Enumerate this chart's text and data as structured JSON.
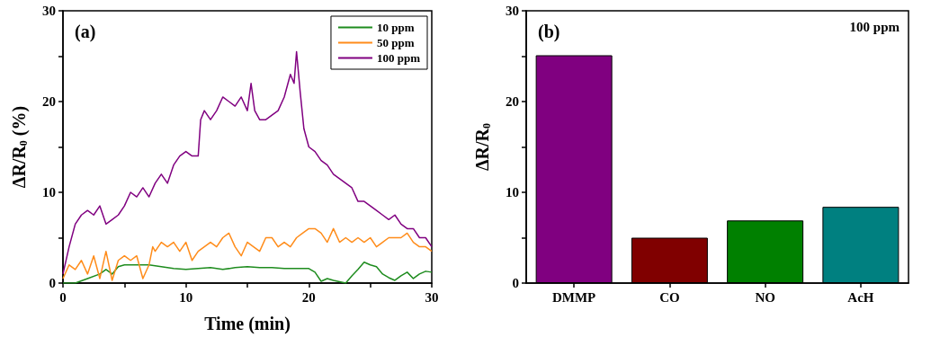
{
  "chart_data": [
    {
      "type": "line",
      "title": "(a)",
      "xlabel": "Time (min)",
      "ylabel": "ΔR/R$_{0}$ (%)",
      "xlim": [
        0,
        30
      ],
      "ylim": [
        0,
        30
      ],
      "xticks": [
        0,
        {
          "value": 5,
          "label": null
        },
        10,
        {
          "value": 15,
          "label": null
        },
        20,
        {
          "value": 25,
          "label": null
        },
        30
      ],
      "yticks": [
        0,
        {
          "value": 5,
          "label": null
        },
        10,
        {
          "value": 15,
          "label": null
        },
        20,
        {
          "value": 25,
          "label": null
        },
        30
      ],
      "grid": false,
      "legend": "top right",
      "marker": "none",
      "line_style": "solid",
      "series": [
        {
          "name": "10 ppm",
          "color": "#1e8c1e",
          "x": [
            0,
            1,
            2,
            3,
            3.5,
            4,
            4.5,
            5,
            6,
            7,
            8,
            9,
            10,
            11,
            12,
            13,
            14,
            15,
            16,
            17,
            18,
            19,
            20,
            20.5,
            21,
            21.5,
            22,
            23,
            23.5,
            24,
            24.5,
            25,
            25.5,
            26,
            26.5,
            27,
            27.5,
            28,
            28.5,
            29,
            29.5,
            30
          ],
          "values": [
            0,
            0,
            0.5,
            1,
            1.5,
            1,
            1.8,
            2,
            2,
            2,
            1.8,
            1.6,
            1.5,
            1.6,
            1.7,
            1.5,
            1.7,
            1.8,
            1.7,
            1.7,
            1.6,
            1.6,
            1.6,
            1.2,
            0.2,
            0.5,
            0.3,
            0,
            0.8,
            1.5,
            2.3,
            2,
            1.8,
            1,
            0.6,
            0.3,
            0.8,
            1.2,
            0.5,
            1,
            1.3,
            1.2
          ]
        },
        {
          "name": "50 ppm",
          "color": "#ff8c1a",
          "x": [
            0,
            0.5,
            1,
            1.5,
            2,
            2.5,
            3,
            3.5,
            4,
            4.5,
            5,
            5.5,
            6,
            6.5,
            7,
            7.3,
            7.5,
            8,
            8.5,
            9,
            9.5,
            10,
            10.5,
            11,
            11.5,
            12,
            12.5,
            13,
            13.5,
            14,
            14.5,
            15,
            15.5,
            16,
            16.5,
            17,
            17.5,
            18,
            18.5,
            19,
            19.5,
            20,
            20.5,
            21,
            21.5,
            22,
            22.5,
            23,
            23.5,
            24,
            24.5,
            25,
            25.5,
            26,
            26.5,
            27,
            27.5,
            28,
            28.5,
            29,
            29.5,
            30
          ],
          "values": [
            0.5,
            2,
            1.5,
            2.5,
            1,
            3,
            0.5,
            3.5,
            0.3,
            2.5,
            3,
            2.5,
            3,
            0.5,
            2,
            4,
            3.5,
            4.5,
            4,
            4.5,
            3.5,
            4.5,
            2.5,
            3.5,
            4,
            4.5,
            4,
            5,
            5.5,
            4,
            3,
            4.5,
            4,
            3.5,
            5,
            5,
            4,
            4.5,
            4,
            5,
            5.5,
            6,
            6,
            5.5,
            4.5,
            6,
            4.5,
            5,
            4.5,
            5,
            4.5,
            5,
            4,
            4.5,
            5,
            5,
            5,
            5.5,
            4.5,
            4,
            4,
            3.5
          ]
        },
        {
          "name": "100 ppm",
          "color": "#800080",
          "x": [
            0,
            0.5,
            1,
            1.5,
            2,
            2.5,
            3,
            3.5,
            4,
            4.5,
            5,
            5.5,
            6,
            6.5,
            7,
            7.5,
            8,
            8.5,
            9,
            9.5,
            10,
            10.5,
            11,
            11.2,
            11.5,
            12,
            12.5,
            13,
            13.5,
            14,
            14.5,
            15,
            15.3,
            15.6,
            16,
            16.5,
            17,
            17.5,
            18,
            18.5,
            18.8,
            19,
            19.3,
            19.6,
            20,
            20.5,
            21,
            21.5,
            22,
            22.5,
            23,
            23.5,
            24,
            24.5,
            25,
            25.5,
            26,
            26.5,
            27,
            27.5,
            28,
            28.5,
            29,
            29.5,
            30
          ],
          "values": [
            1,
            4,
            6.5,
            7.5,
            8,
            7.5,
            8.5,
            6.5,
            7,
            7.5,
            8.5,
            10,
            9.5,
            10.5,
            9.5,
            11,
            12,
            11,
            13,
            14,
            14.5,
            14,
            14,
            18,
            19,
            18,
            19,
            20.5,
            20,
            19.5,
            20.5,
            19,
            22,
            19,
            18,
            18,
            18.5,
            19,
            20.5,
            23,
            22,
            25.5,
            21,
            17,
            15,
            14.5,
            13.5,
            13,
            12,
            11.5,
            11,
            10.5,
            9,
            9,
            8.5,
            8,
            7.5,
            7,
            7.5,
            6.5,
            6,
            6,
            5,
            5,
            4
          ]
        }
      ]
    },
    {
      "type": "bar",
      "title": "(b)",
      "ylabel": "ΔR/R$_{0}$",
      "annotations": [
        "100 ppm"
      ],
      "categories": [
        "DMMP",
        "CO",
        "NO",
        "AcH"
      ],
      "values": [
        25.1,
        5.0,
        6.9,
        8.4
      ],
      "colors": [
        "#800080",
        "#800000",
        "#008000",
        "#008080"
      ],
      "ylim": [
        0,
        30
      ],
      "yticks": [
        0,
        {
          "value": 5,
          "label": null
        },
        10,
        {
          "value": 15,
          "label": null
        },
        20,
        {
          "value": 25,
          "label": null
        },
        30
      ],
      "grid": false,
      "legend": false
    }
  ]
}
